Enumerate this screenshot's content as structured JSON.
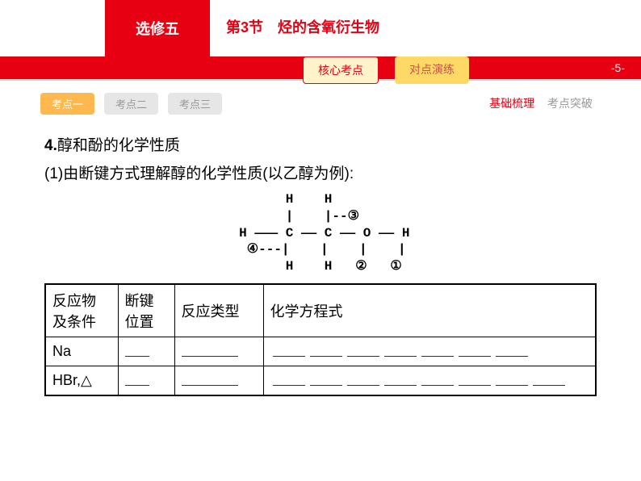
{
  "header": {
    "elective": "选修五",
    "chapter": "第3节　烃的含氧衍生物",
    "page_no": "-5-",
    "top_tabs": [
      {
        "label": "核心考点",
        "active": true
      },
      {
        "label": "对点演练",
        "active": false
      }
    ]
  },
  "sub_tabs": [
    "考点一",
    "考点二",
    "考点三"
  ],
  "right_sub": {
    "a": "基础梳理",
    "b": "考点突破"
  },
  "content": {
    "h_num": "4.",
    "h_text": "醇和酚的化学性质",
    "sub": "(1)由断键方式理解醇的化学性质(以乙醇为例):",
    "diagram": "       H    H\n       |    |--③\n H ——— C —— C —— O —— H\n  ④---|    |    |    |\n       H    H   ②   ①"
  },
  "table": {
    "headers": [
      "反应物\n及条件",
      "断键\n位置",
      "反应类型",
      "化学方程式"
    ],
    "rows": [
      {
        "reagent": "Na",
        "eq_count": 7
      },
      {
        "reagent": "HBr,△",
        "eq_count": 8
      }
    ]
  },
  "style": {
    "brand_red": "#e60012",
    "tab_yellow": "#ffd966",
    "active_orange": "#ffb84d",
    "background": "#ffffff",
    "text": "#000000",
    "font_body": 19,
    "font_table": 18
  }
}
